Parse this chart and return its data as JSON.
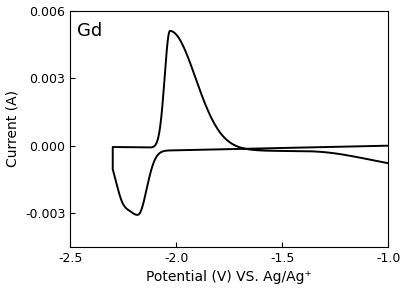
{
  "title": "Gd",
  "xlabel": "Potential (V) VS. Ag/Ag⁺",
  "ylabel": "Current (A)",
  "xlim": [
    -2.5,
    -1.0
  ],
  "ylim": [
    -0.0045,
    0.006
  ],
  "xticks": [
    -2.5,
    -2.0,
    -1.5,
    -1.0
  ],
  "yticks": [
    -0.003,
    0.0,
    0.003,
    0.006
  ],
  "line_color": "#000000",
  "line_width": 1.4,
  "background_color": "#ffffff",
  "figsize": [
    4.06,
    2.9
  ],
  "dpi": 100
}
